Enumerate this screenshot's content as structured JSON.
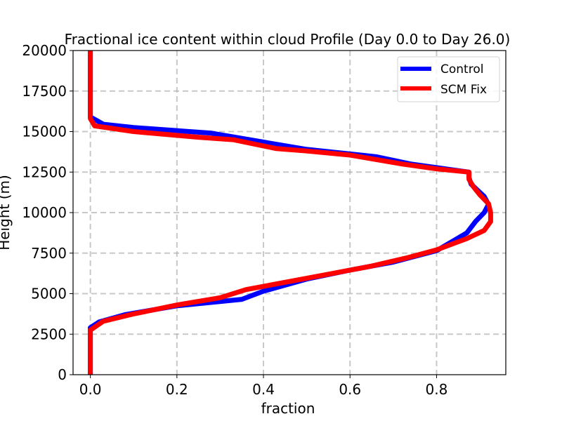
{
  "chart_data": {
    "type": "line",
    "title": "Fractional ice content within cloud Profile (Day 0.0 to Day 26.0)",
    "xlabel": "fraction",
    "ylabel": "Height (m)",
    "xlim": [
      -0.04,
      0.96
    ],
    "ylim": [
      0,
      20000
    ],
    "xticks": [
      0.0,
      0.2,
      0.4,
      0.6,
      0.8
    ],
    "xtick_labels": [
      "0.0",
      "0.2",
      "0.4",
      "0.6",
      "0.8"
    ],
    "yticks": [
      0,
      2500,
      5000,
      7500,
      10000,
      12500,
      15000,
      17500,
      20000
    ],
    "ytick_labels": [
      "0",
      "2500",
      "5000",
      "7500",
      "10000",
      "12500",
      "15000",
      "17500",
      "20000"
    ],
    "grid": true,
    "legend_position": "upper right",
    "series": [
      {
        "name": "Control",
        "color": "#0000ff",
        "points": [
          [
            0.0,
            0
          ],
          [
            0.0,
            2000
          ],
          [
            0.0,
            2900
          ],
          [
            0.02,
            3250
          ],
          [
            0.08,
            3700
          ],
          [
            0.2,
            4250
          ],
          [
            0.35,
            4650
          ],
          [
            0.4,
            5150
          ],
          [
            0.5,
            5900
          ],
          [
            0.6,
            6450
          ],
          [
            0.7,
            6950
          ],
          [
            0.8,
            7650
          ],
          [
            0.87,
            8750
          ],
          [
            0.89,
            9450
          ],
          [
            0.91,
            10000
          ],
          [
            0.92,
            10500
          ],
          [
            0.91,
            11000
          ],
          [
            0.88,
            11750
          ],
          [
            0.875,
            12150
          ],
          [
            0.875,
            12500
          ],
          [
            0.74,
            13000
          ],
          [
            0.66,
            13450
          ],
          [
            0.5,
            13900
          ],
          [
            0.4,
            14350
          ],
          [
            0.28,
            14900
          ],
          [
            0.1,
            15250
          ],
          [
            0.03,
            15450
          ],
          [
            0.0,
            15900
          ],
          [
            0.0,
            17500
          ],
          [
            0.0,
            20000
          ]
        ]
      },
      {
        "name": "SCM Fix",
        "color": "#ff0000",
        "points": [
          [
            0.0,
            0
          ],
          [
            0.0,
            2000
          ],
          [
            0.0,
            2750
          ],
          [
            0.03,
            3300
          ],
          [
            0.1,
            3750
          ],
          [
            0.2,
            4300
          ],
          [
            0.3,
            4750
          ],
          [
            0.36,
            5250
          ],
          [
            0.45,
            5700
          ],
          [
            0.55,
            6200
          ],
          [
            0.65,
            6700
          ],
          [
            0.73,
            7200
          ],
          [
            0.8,
            7700
          ],
          [
            0.87,
            8400
          ],
          [
            0.91,
            8900
          ],
          [
            0.925,
            9450
          ],
          [
            0.925,
            10000
          ],
          [
            0.92,
            10550
          ],
          [
            0.9,
            11100
          ],
          [
            0.885,
            11600
          ],
          [
            0.875,
            12050
          ],
          [
            0.875,
            12500
          ],
          [
            0.8,
            12700
          ],
          [
            0.72,
            13000
          ],
          [
            0.6,
            13550
          ],
          [
            0.5,
            13800
          ],
          [
            0.43,
            13950
          ],
          [
            0.33,
            14500
          ],
          [
            0.25,
            14650
          ],
          [
            0.1,
            15000
          ],
          [
            0.01,
            15350
          ],
          [
            0.0,
            15800
          ],
          [
            0.0,
            17500
          ],
          [
            0.0,
            20000
          ]
        ]
      }
    ]
  }
}
